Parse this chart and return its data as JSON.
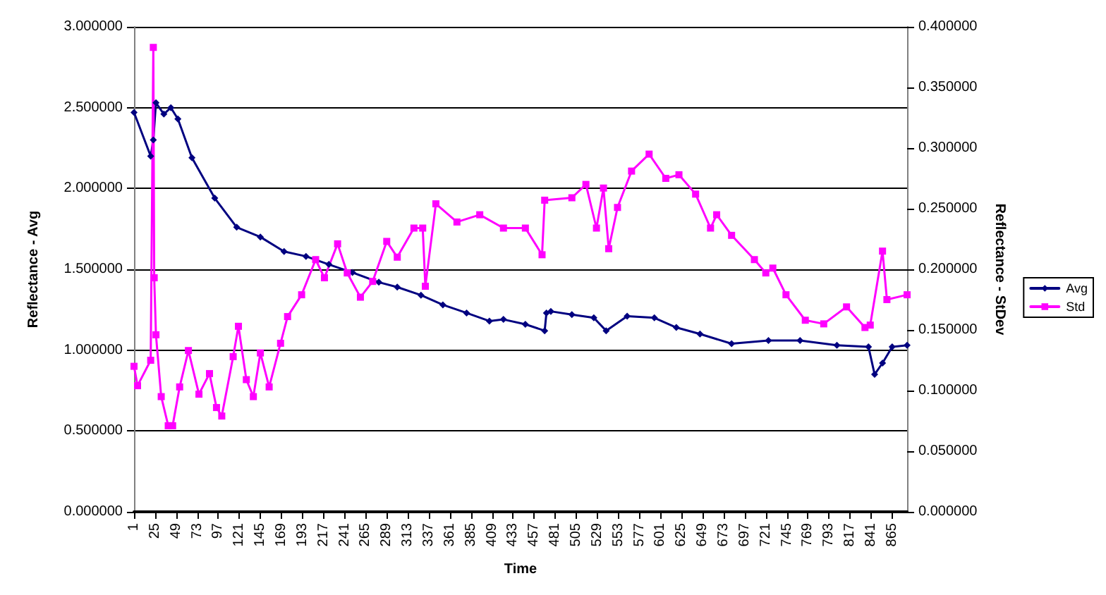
{
  "chart_data": {
    "type": "line",
    "xlabel": "Time",
    "ylabel": "Reflectance - Avg",
    "y2label": "Reflectance - StDev",
    "xlim": [
      1,
      882
    ],
    "xticks": [
      1,
      25,
      49,
      73,
      97,
      121,
      145,
      169,
      193,
      217,
      241,
      265,
      289,
      313,
      337,
      361,
      385,
      409,
      433,
      457,
      481,
      505,
      529,
      553,
      577,
      601,
      625,
      649,
      673,
      697,
      721,
      745,
      769,
      793,
      817,
      841,
      865
    ],
    "ylim": [
      0,
      3
    ],
    "yticks": [
      {
        "value": 0,
        "label": "0.000000"
      },
      {
        "value": 0.5,
        "label": "0.500000"
      },
      {
        "value": 1,
        "label": "1.000000"
      },
      {
        "value": 1.5,
        "label": "1.500000"
      },
      {
        "value": 2,
        "label": "2.000000"
      },
      {
        "value": 2.5,
        "label": "2.500000"
      },
      {
        "value": 3,
        "label": "3.000000"
      }
    ],
    "y2lim": [
      0,
      0.4
    ],
    "y2ticks": [
      {
        "value": 0,
        "label": "0.000000"
      },
      {
        "value": 0.05,
        "label": "0.050000"
      },
      {
        "value": 0.1,
        "label": "0.100000"
      },
      {
        "value": 0.15,
        "label": "0.150000"
      },
      {
        "value": 0.2,
        "label": "0.200000"
      },
      {
        "value": 0.25,
        "label": "0.250000"
      },
      {
        "value": 0.3,
        "label": "0.300000"
      },
      {
        "value": 0.35,
        "label": "0.350000"
      },
      {
        "value": 0.4,
        "label": "0.400000"
      }
    ],
    "grid": "y",
    "legend": "right",
    "line_style": "solid",
    "series": [
      {
        "name": "Avg",
        "color": "#000080",
        "marker": "diamond",
        "x": [
          1,
          20,
          23,
          26,
          35,
          43,
          51,
          67,
          93,
          118,
          145,
          172,
          197,
          223,
          250,
          280,
          301,
          328,
          353,
          380,
          406,
          422,
          447,
          469,
          471,
          476,
          500,
          525,
          539,
          563,
          594,
          619,
          646,
          682,
          724,
          760,
          802,
          838,
          845,
          854,
          865,
          882
        ],
        "values": [
          2.47,
          2.2,
          2.3,
          2.53,
          2.46,
          2.5,
          2.43,
          2.19,
          1.94,
          1.76,
          1.7,
          1.61,
          1.58,
          1.53,
          1.48,
          1.42,
          1.39,
          1.34,
          1.28,
          1.23,
          1.18,
          1.19,
          1.16,
          1.12,
          1.23,
          1.24,
          1.22,
          1.2,
          1.12,
          1.21,
          1.2,
          1.14,
          1.1,
          1.04,
          1.06,
          1.06,
          1.03,
          1.02,
          0.85,
          0.92,
          1.02,
          1.03
        ]
      },
      {
        "name": "Std",
        "color": "#ff00ff",
        "marker": "square",
        "axis": "y2",
        "x": [
          1,
          5,
          20,
          23,
          24,
          26,
          32,
          40,
          45,
          53,
          63,
          75,
          87,
          95,
          101,
          114,
          120,
          129,
          137,
          145,
          155,
          168,
          176,
          192,
          208,
          218,
          233,
          244,
          259,
          273,
          289,
          301,
          320,
          330,
          333,
          345,
          369,
          395,
          422,
          447,
          466,
          469,
          500,
          516,
          528,
          536,
          542,
          552,
          568,
          588,
          607,
          622,
          641,
          658,
          665,
          682,
          708,
          721,
          729,
          744,
          766,
          787,
          813,
          834,
          840,
          854,
          859,
          882
        ],
        "values": [
          0.12,
          0.104,
          0.125,
          0.383,
          0.193,
          0.146,
          0.095,
          0.071,
          0.071,
          0.103,
          0.133,
          0.097,
          0.114,
          0.086,
          0.079,
          0.128,
          0.153,
          0.109,
          0.095,
          0.131,
          0.103,
          0.139,
          0.161,
          0.179,
          0.208,
          0.193,
          0.221,
          0.197,
          0.177,
          0.19,
          0.223,
          0.21,
          0.234,
          0.234,
          0.186,
          0.254,
          0.239,
          0.245,
          0.234,
          0.234,
          0.212,
          0.257,
          0.259,
          0.27,
          0.234,
          0.267,
          0.217,
          0.251,
          0.281,
          0.295,
          0.275,
          0.278,
          0.262,
          0.234,
          0.245,
          0.228,
          0.208,
          0.197,
          0.201,
          0.179,
          0.158,
          0.155,
          0.169,
          0.152,
          0.154,
          0.215,
          0.175,
          0.179
        ]
      }
    ]
  }
}
